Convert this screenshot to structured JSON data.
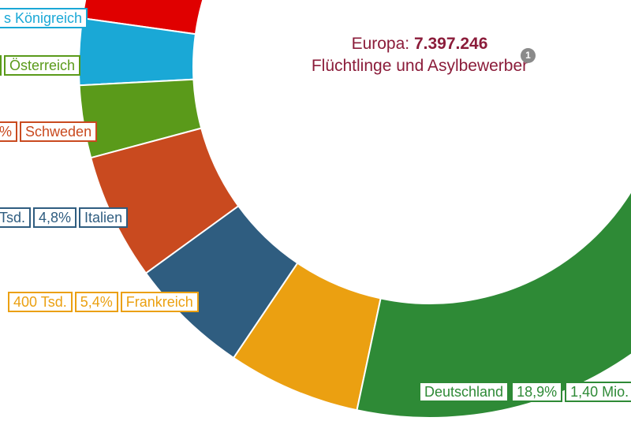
{
  "chart_data": {
    "type": "donut",
    "center": {
      "label": "Europa:",
      "value": "7.397.246",
      "subtitle": "Flüchtlinge und Asylbewerber",
      "badge": "1"
    },
    "segments": [
      {
        "name": "Vereinigtes Königreich",
        "visible_name": "s Königreich",
        "color": "#1aa8d6"
      },
      {
        "name": "Österreich",
        "visible_name": "Österreich",
        "color": "#5a9a1a"
      },
      {
        "name": "Schweden",
        "visible_name": "Schweden",
        "share_visible": "%",
        "color": "#c94a1f"
      },
      {
        "name": "Italien",
        "visible_name": "Italien",
        "value_visible": "Tsd.",
        "share": "4,8%",
        "color": "#2f5d80"
      },
      {
        "name": "Frankreich",
        "visible_name": "Frankreich",
        "value": "400 Tsd.",
        "share": "5,4%",
        "color": "#eba011"
      },
      {
        "name": "Deutschland",
        "visible_name": "Deutschland",
        "value": "1,40 Mio.",
        "share": "18,9%",
        "color": "#2e8a36"
      }
    ],
    "other_colors": {
      "top_red": "#e00000",
      "right_grey": "#6e9db2"
    }
  }
}
